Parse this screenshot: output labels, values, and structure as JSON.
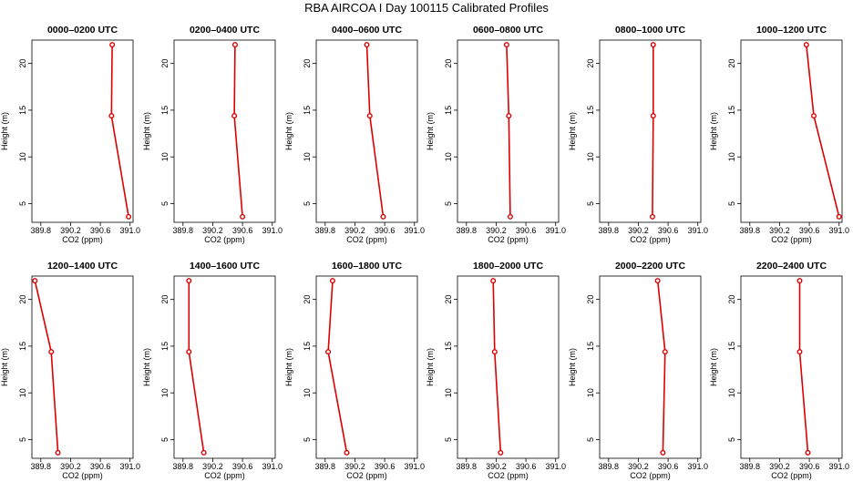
{
  "title": "RBA AIRCOA I  Day 100115  Calibrated Profiles",
  "colors": {
    "series": "#dd0000",
    "axis": "#000000"
  },
  "chart_data": [
    {
      "type": "line",
      "title": "0000–0200 UTC",
      "xlabel": "CO2 (ppm)",
      "ylabel": "Height (m)",
      "x": [
        390.76,
        390.75,
        390.98
      ],
      "y": [
        22,
        14.4,
        3.6
      ],
      "xlim": [
        389.68,
        391.04
      ],
      "ylim": [
        3,
        22.5
      ],
      "xticks": [
        "389.8",
        "390.2",
        "390.6",
        "391.0"
      ],
      "yticks": [
        "5",
        "10",
        "15",
        "20"
      ]
    },
    {
      "type": "line",
      "title": "0200–0400 UTC",
      "xlabel": "CO2 (ppm)",
      "ylabel": "Height (m)",
      "x": [
        390.5,
        390.49,
        390.6
      ],
      "y": [
        22,
        14.4,
        3.6
      ],
      "xlim": [
        389.68,
        391.04
      ],
      "ylim": [
        3,
        22.5
      ],
      "xticks": [
        "389.8",
        "390.2",
        "390.6",
        "391.0"
      ],
      "yticks": [
        "5",
        "10",
        "15",
        "20"
      ]
    },
    {
      "type": "line",
      "title": "0400–0600 UTC",
      "xlabel": "CO2 (ppm)",
      "ylabel": "Height (m)",
      "x": [
        390.36,
        390.4,
        390.58
      ],
      "y": [
        22,
        14.4,
        3.6
      ],
      "xlim": [
        389.68,
        391.04
      ],
      "ylim": [
        3,
        22.5
      ],
      "xticks": [
        "389.8",
        "390.2",
        "390.6",
        "391.0"
      ],
      "yticks": [
        "5",
        "10",
        "15",
        "20"
      ]
    },
    {
      "type": "line",
      "title": "0600–0800 UTC",
      "xlabel": "CO2 (ppm)",
      "ylabel": "Height (m)",
      "x": [
        390.34,
        390.37,
        390.39
      ],
      "y": [
        22,
        14.4,
        3.6
      ],
      "xlim": [
        389.68,
        391.04
      ],
      "ylim": [
        3,
        22.5
      ],
      "xticks": [
        "389.8",
        "390.2",
        "390.6",
        "391.0"
      ],
      "yticks": [
        "5",
        "10",
        "15",
        "20"
      ]
    },
    {
      "type": "line",
      "title": "0800–1000 UTC",
      "xlabel": "CO2 (ppm)",
      "ylabel": "Height (m)",
      "x": [
        390.4,
        390.4,
        390.39
      ],
      "y": [
        22,
        14.4,
        3.6
      ],
      "xlim": [
        389.68,
        391.04
      ],
      "ylim": [
        3,
        22.5
      ],
      "xticks": [
        "389.8",
        "390.2",
        "390.6",
        "391.0"
      ],
      "yticks": [
        "5",
        "10",
        "15",
        "20"
      ]
    },
    {
      "type": "line",
      "title": "1000–1200 UTC",
      "xlabel": "CO2 (ppm)",
      "ylabel": "Height (m)",
      "x": [
        390.56,
        390.66,
        391.0
      ],
      "y": [
        22,
        14.4,
        3.6
      ],
      "xlim": [
        389.68,
        391.04
      ],
      "ylim": [
        3,
        22.5
      ],
      "xticks": [
        "389.8",
        "390.2",
        "390.6",
        "391.0"
      ],
      "yticks": [
        "5",
        "10",
        "15",
        "20"
      ]
    },
    {
      "type": "line",
      "title": "1200–1400 UTC",
      "xlabel": "CO2 (ppm)",
      "ylabel": "Height (m)",
      "x": [
        389.72,
        389.94,
        390.03
      ],
      "y": [
        22,
        14.4,
        3.6
      ],
      "xlim": [
        389.68,
        391.04
      ],
      "ylim": [
        3,
        22.5
      ],
      "xticks": [
        "389.8",
        "390.2",
        "390.6",
        "391.0"
      ],
      "yticks": [
        "5",
        "10",
        "15",
        "20"
      ]
    },
    {
      "type": "line",
      "title": "1400–1600 UTC",
      "xlabel": "CO2 (ppm)",
      "ylabel": "Height (m)",
      "x": [
        389.88,
        389.88,
        390.08
      ],
      "y": [
        22,
        14.4,
        3.6
      ],
      "xlim": [
        389.68,
        391.04
      ],
      "ylim": [
        3,
        22.5
      ],
      "xticks": [
        "389.8",
        "390.2",
        "390.6",
        "391.0"
      ],
      "yticks": [
        "5",
        "10",
        "15",
        "20"
      ]
    },
    {
      "type": "line",
      "title": "1600–1800 UTC",
      "xlabel": "CO2 (ppm)",
      "ylabel": "Height (m)",
      "x": [
        389.9,
        389.84,
        390.09
      ],
      "y": [
        22,
        14.4,
        3.6
      ],
      "xlim": [
        389.68,
        391.04
      ],
      "ylim": [
        3,
        22.5
      ],
      "xticks": [
        "389.8",
        "390.2",
        "390.6",
        "391.0"
      ],
      "yticks": [
        "5",
        "10",
        "15",
        "20"
      ]
    },
    {
      "type": "line",
      "title": "1800–2000 UTC",
      "xlabel": "CO2 (ppm)",
      "ylabel": "Height (m)",
      "x": [
        390.16,
        390.18,
        390.26
      ],
      "y": [
        22,
        14.4,
        3.6
      ],
      "xlim": [
        389.68,
        391.04
      ],
      "ylim": [
        3,
        22.5
      ],
      "xticks": [
        "389.8",
        "390.2",
        "390.6",
        "391.0"
      ],
      "yticks": [
        "5",
        "10",
        "15",
        "20"
      ]
    },
    {
      "type": "line",
      "title": "2000–2200 UTC",
      "xlabel": "CO2 (ppm)",
      "ylabel": "Height (m)",
      "x": [
        390.46,
        390.56,
        390.53
      ],
      "y": [
        22,
        14.4,
        3.6
      ],
      "xlim": [
        389.68,
        391.04
      ],
      "ylim": [
        3,
        22.5
      ],
      "xticks": [
        "389.8",
        "390.2",
        "390.6",
        "391.0"
      ],
      "yticks": [
        "5",
        "10",
        "15",
        "20"
      ]
    },
    {
      "type": "line",
      "title": "2200–2400 UTC",
      "xlabel": "CO2 (ppm)",
      "ylabel": "Height (m)",
      "x": [
        390.47,
        390.47,
        390.58
      ],
      "y": [
        22,
        14.4,
        3.6
      ],
      "xlim": [
        389.68,
        391.04
      ],
      "ylim": [
        3,
        22.5
      ],
      "xticks": [
        "389.8",
        "390.2",
        "390.6",
        "391.0"
      ],
      "yticks": [
        "5",
        "10",
        "15",
        "20"
      ]
    }
  ]
}
